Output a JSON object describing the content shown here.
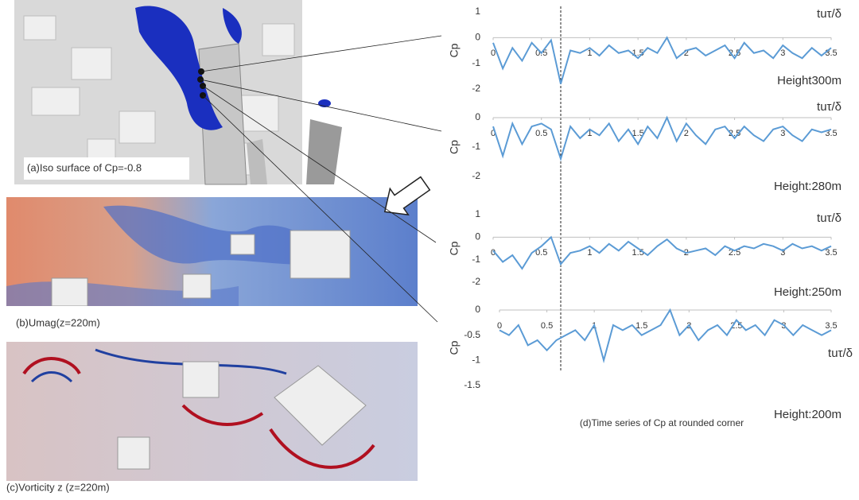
{
  "figure": {
    "panel_a": "(a)Iso surface of Cp=-0.8",
    "panel_b": "(b)Umag(z=220m)",
    "panel_c": "(c)Vorticity z (z=220m)",
    "panel_d": "(d)Time series of Cp at rounded corner"
  },
  "chart_data": [
    {
      "type": "line",
      "title": "Height300m",
      "x_label": "tuτ/δ",
      "y_label": "Cp",
      "xlim": [
        0,
        3.5
      ],
      "ylim": [
        -2,
        1
      ],
      "yticks": [
        1,
        0,
        -1,
        -2
      ],
      "xticks": [
        0,
        0.5,
        1,
        1.5,
        2,
        2.5,
        3,
        3.5
      ],
      "x": [
        0,
        0.1,
        0.2,
        0.3,
        0.4,
        0.5,
        0.6,
        0.7,
        0.8,
        0.9,
        1,
        1.1,
        1.2,
        1.3,
        1.4,
        1.5,
        1.6,
        1.7,
        1.8,
        1.9,
        2,
        2.1,
        2.2,
        2.3,
        2.4,
        2.5,
        2.6,
        2.7,
        2.8,
        2.9,
        3,
        3.1,
        3.2,
        3.3,
        3.4,
        3.5
      ],
      "series": [
        {
          "color": "#5b9bd5",
          "values": [
            -0.2,
            -1.2,
            -0.4,
            -0.9,
            -0.2,
            -0.6,
            -0.1,
            -1.8,
            -0.5,
            -0.6,
            -0.4,
            -0.7,
            -0.3,
            -0.6,
            -0.5,
            -0.8,
            -0.4,
            -0.6,
            0,
            -0.8,
            -0.5,
            -0.4,
            -0.7,
            -0.5,
            -0.3,
            -0.8,
            -0.2,
            -0.6,
            -0.5,
            -0.8,
            -0.3,
            -0.6,
            -0.8,
            -0.4,
            -0.7,
            -0.4
          ]
        }
      ]
    },
    {
      "type": "line",
      "title": "Height:280m",
      "x_label": "tuτ/δ",
      "y_label": "Cp",
      "xlim": [
        0,
        3.5
      ],
      "ylim": [
        -2,
        0
      ],
      "yticks": [
        0,
        -1,
        -2
      ],
      "xticks": [
        0,
        0.5,
        1,
        1.5,
        2,
        2.5,
        3,
        3.5
      ],
      "x": [
        0,
        0.1,
        0.2,
        0.3,
        0.4,
        0.5,
        0.6,
        0.7,
        0.8,
        0.9,
        1,
        1.1,
        1.2,
        1.3,
        1.4,
        1.5,
        1.6,
        1.7,
        1.8,
        1.9,
        2,
        2.1,
        2.2,
        2.3,
        2.4,
        2.5,
        2.6,
        2.7,
        2.8,
        2.9,
        3,
        3.1,
        3.2,
        3.3,
        3.4,
        3.5
      ],
      "series": [
        {
          "color": "#5b9bd5",
          "values": [
            -0.3,
            -1.3,
            -0.2,
            -0.9,
            -0.3,
            -0.2,
            -0.4,
            -1.4,
            -0.3,
            -0.7,
            -0.4,
            -0.6,
            -0.2,
            -0.8,
            -0.4,
            -0.9,
            -0.3,
            -0.7,
            0,
            -0.8,
            -0.2,
            -0.6,
            -0.9,
            -0.4,
            -0.3,
            -0.7,
            -0.3,
            -0.6,
            -0.8,
            -0.4,
            -0.3,
            -0.6,
            -0.8,
            -0.4,
            -0.5,
            -0.4
          ]
        }
      ]
    },
    {
      "type": "line",
      "title": "Height:250m",
      "x_label": "tuτ/δ",
      "y_label": "Cp",
      "xlim": [
        0,
        3.5
      ],
      "ylim": [
        -2,
        1
      ],
      "yticks": [
        1,
        0,
        -1,
        -2
      ],
      "xticks": [
        0,
        0.5,
        1,
        1.5,
        2,
        2.5,
        3,
        3.5
      ],
      "x": [
        0,
        0.1,
        0.2,
        0.3,
        0.4,
        0.5,
        0.6,
        0.7,
        0.8,
        0.9,
        1,
        1.1,
        1.2,
        1.3,
        1.4,
        1.5,
        1.6,
        1.7,
        1.8,
        1.9,
        2,
        2.1,
        2.2,
        2.3,
        2.4,
        2.5,
        2.6,
        2.7,
        2.8,
        2.9,
        3,
        3.1,
        3.2,
        3.3,
        3.4,
        3.5
      ],
      "series": [
        {
          "color": "#5b9bd5",
          "values": [
            -0.6,
            -1.1,
            -0.8,
            -1.4,
            -0.7,
            -0.4,
            0,
            -1.2,
            -0.7,
            -0.6,
            -0.4,
            -0.7,
            -0.3,
            -0.6,
            -0.2,
            -0.5,
            -0.8,
            -0.4,
            -0.1,
            -0.5,
            -0.7,
            -0.6,
            -0.5,
            -0.8,
            -0.4,
            -0.6,
            -0.4,
            -0.5,
            -0.3,
            -0.4,
            -0.6,
            -0.3,
            -0.5,
            -0.4,
            -0.6,
            -0.4
          ]
        }
      ]
    },
    {
      "type": "line",
      "title": "Height:200m",
      "x_label": "tuτ/δ",
      "y_label": "Cp",
      "xlim": [
        0,
        3.5
      ],
      "ylim": [
        -1.5,
        0
      ],
      "yticks": [
        0,
        -0.5,
        -1,
        -1.5
      ],
      "xticks": [
        0,
        0.5,
        1,
        1.5,
        2,
        2.5,
        3,
        3.5
      ],
      "x": [
        0,
        0.1,
        0.2,
        0.3,
        0.4,
        0.5,
        0.6,
        0.7,
        0.8,
        0.9,
        1,
        1.1,
        1.2,
        1.3,
        1.4,
        1.5,
        1.6,
        1.7,
        1.8,
        1.9,
        2,
        2.1,
        2.2,
        2.3,
        2.4,
        2.5,
        2.6,
        2.7,
        2.8,
        2.9,
        3,
        3.1,
        3.2,
        3.3,
        3.4,
        3.5
      ],
      "series": [
        {
          "color": "#5b9bd5",
          "values": [
            -0.4,
            -0.5,
            -0.3,
            -0.7,
            -0.6,
            -0.8,
            -0.6,
            -0.5,
            -0.4,
            -0.6,
            -0.3,
            -1.0,
            -0.3,
            -0.4,
            -0.3,
            -0.5,
            -0.4,
            -0.3,
            0,
            -0.5,
            -0.3,
            -0.6,
            -0.4,
            -0.3,
            -0.5,
            -0.2,
            -0.4,
            -0.3,
            -0.5,
            -0.2,
            -0.3,
            -0.5,
            -0.3,
            -0.4,
            -0.5,
            -0.4
          ]
        }
      ]
    }
  ]
}
